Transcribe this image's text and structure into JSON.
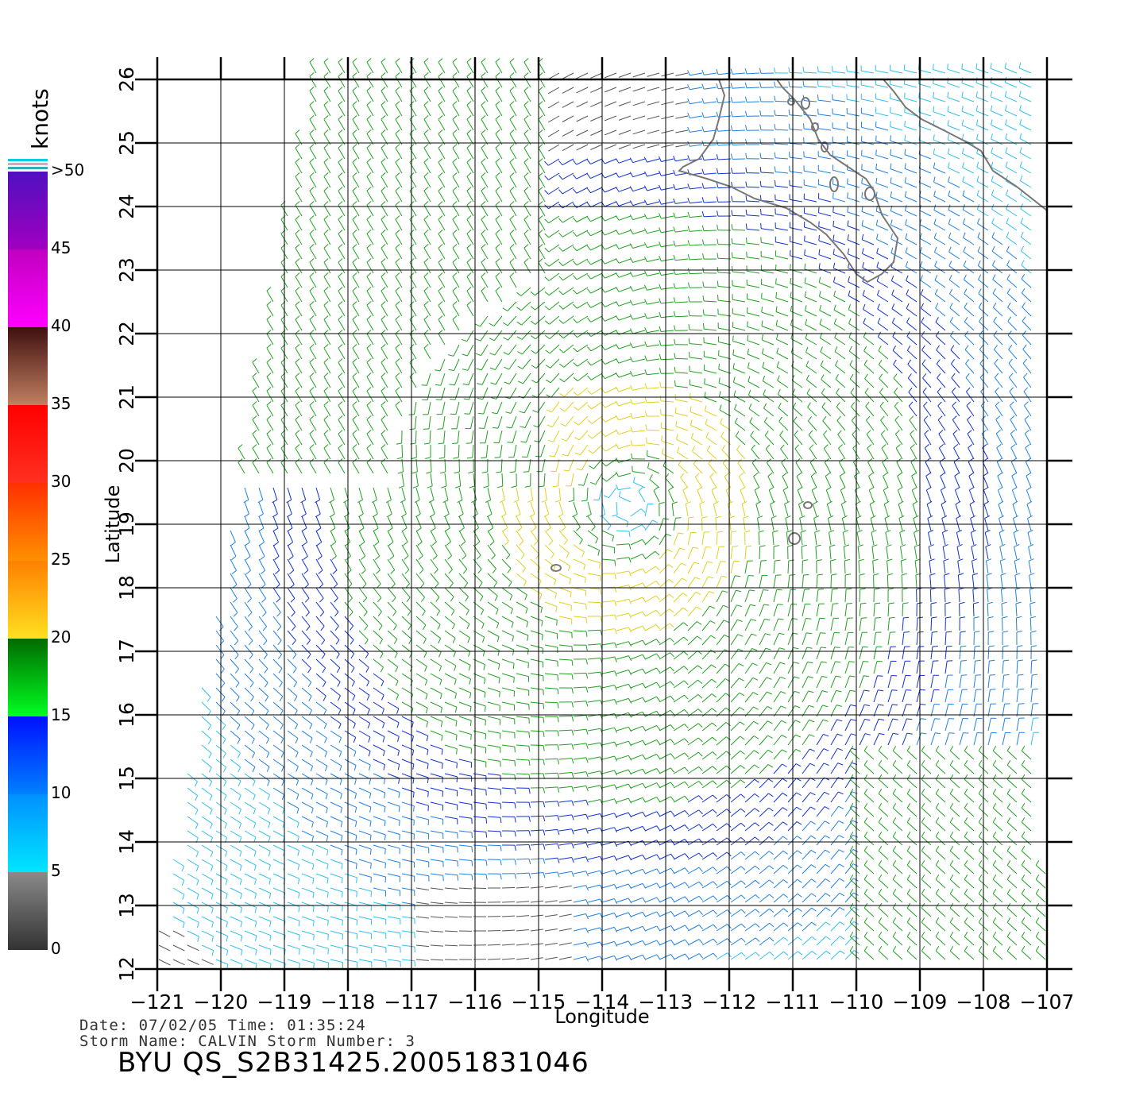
{
  "colorbar": {
    "title": "knots",
    "segments": [
      {
        "from": 0,
        "to": 5,
        "color_top": "#333333",
        "color_bottom": "#8a8a8a"
      },
      {
        "from": 5,
        "to": 10,
        "color_top": "#00e6ff",
        "color_bottom": "#0090ff"
      },
      {
        "from": 10,
        "to": 15,
        "color_top": "#0080ff",
        "color_bottom": "#0010ff"
      },
      {
        "from": 15,
        "to": 20,
        "color_top": "#00ff20",
        "color_bottom": "#006a00"
      },
      {
        "from": 20,
        "to": 25,
        "color_top": "#ffe020",
        "color_bottom": "#ff8000"
      },
      {
        "from": 25,
        "to": 30,
        "color_top": "#ff9000",
        "color_bottom": "#ff3000"
      },
      {
        "from": 30,
        "to": 35,
        "color_top": "#ff3020",
        "color_bottom": "#ff0000"
      },
      {
        "from": 35,
        "to": 40,
        "color_top": "#c08060",
        "color_bottom": "#401010"
      },
      {
        "from": 40,
        "to": 45,
        "color_top": "#ff00ff",
        "color_bottom": "#c000c0"
      },
      {
        "from": 45,
        "to": 50,
        "color_top": "#a000c0",
        "color_bottom": "#5010c0"
      }
    ],
    "labels": [
      "0",
      "5",
      "10",
      "15",
      "20",
      "25",
      "30",
      "35",
      "40",
      "45",
      ">50"
    ]
  },
  "map": {
    "lon_labels": [
      "−121",
      "−120",
      "−119",
      "−118",
      "−117",
      "−116",
      "−115",
      "−114",
      "−113",
      "−112",
      "−111",
      "−110",
      "−109",
      "−108",
      "−107"
    ],
    "lat_labels": [
      "12",
      "13",
      "14",
      "15",
      "16",
      "17",
      "18",
      "19",
      "20",
      "21",
      "22",
      "23",
      "24",
      "25",
      "26"
    ],
    "lon_range": [
      -121,
      -106.5
    ],
    "lat_range": [
      12,
      26
    ],
    "xlabel": "Longitude",
    "ylabel": "Latitude",
    "storm_center": {
      "lon": -113.6,
      "lat": 19.3
    },
    "coast_color": "#777777"
  },
  "info": {
    "line1": "Date: 07/02/05   Time: 01:35:24",
    "line2": "Storm  Name: CALVIN    Storm  Number: 3",
    "title": "BYU  QS_S2B31425.20051831046"
  }
}
